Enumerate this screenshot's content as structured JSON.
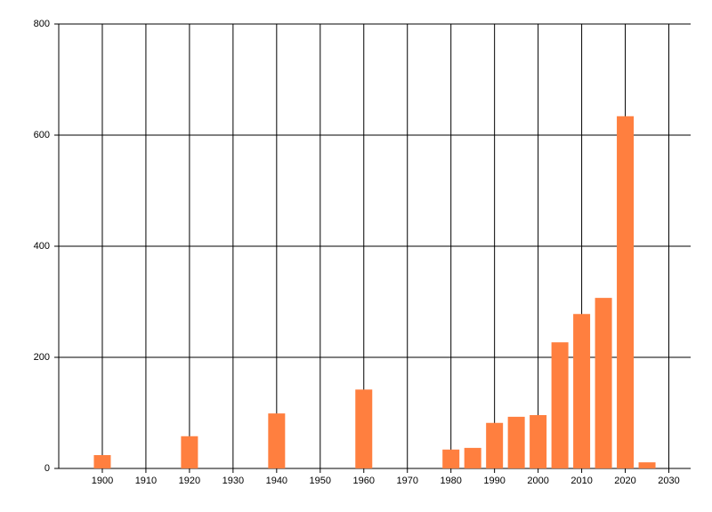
{
  "chart_data": {
    "type": "bar",
    "x": [
      1900,
      1920,
      1940,
      1960,
      1980,
      1985,
      1990,
      1995,
      2000,
      2005,
      2010,
      2015,
      2020,
      2025
    ],
    "values": [
      24,
      58,
      99,
      142,
      34,
      37,
      82,
      93,
      96,
      227,
      278,
      307,
      634,
      11
    ],
    "color": "#ff7f3f",
    "xlim": [
      1890,
      2035
    ],
    "xticks": [
      1900,
      1910,
      1920,
      1930,
      1940,
      1950,
      1960,
      1970,
      1980,
      1990,
      2000,
      2010,
      2020,
      2030
    ],
    "ylim": [
      0,
      800
    ],
    "yticks": [
      0,
      200,
      400,
      600,
      800
    ],
    "grid": true
  }
}
